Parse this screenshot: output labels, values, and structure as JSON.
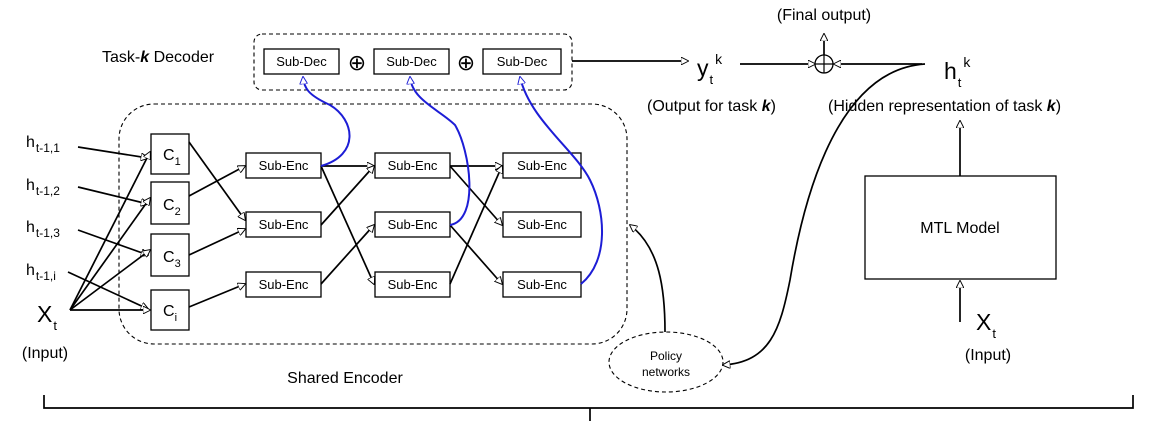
{
  "decoder": {
    "title_prefix": "Task-",
    "title_k": "k",
    "title_suffix": " Decoder",
    "blocks": [
      "Sub-Dec",
      "Sub-Dec",
      "Sub-Dec"
    ],
    "combine_symbol": "⊕"
  },
  "encoder": {
    "label": "Shared Encoder",
    "clusters": [
      {
        "base": "C",
        "sub": "1"
      },
      {
        "base": "C",
        "sub": "2"
      },
      {
        "base": "C",
        "sub": "3"
      },
      {
        "base": "C",
        "sub": "i"
      }
    ],
    "sub_enc_label": "Sub-Enc"
  },
  "inputs": {
    "hidden": [
      {
        "base": "h",
        "sub": "t-1,1"
      },
      {
        "base": "h",
        "sub": "t-1,2"
      },
      {
        "base": "h",
        "sub": "t-1,3"
      },
      {
        "base": "h",
        "sub": "t-1,i"
      }
    ],
    "x_base": "X",
    "x_sub": "t",
    "x_caption": "(Input)"
  },
  "output": {
    "y_base": "y",
    "y_sub": "t",
    "y_sup": "k",
    "y_caption_prefix": "(Output for task ",
    "y_caption_k": "k",
    "y_caption_suffix": ")",
    "final_caption": "(Final output)",
    "h_base": "h",
    "h_sub": "t",
    "h_sup": "k",
    "h_caption_prefix": "(Hidden representation of task ",
    "h_caption_k": "k",
    "h_caption_suffix": ")"
  },
  "policy": {
    "line1": "Policy",
    "line2": "networks"
  },
  "mtl": {
    "label": "MTL Model",
    "x_base": "X",
    "x_sub": "t",
    "x_caption": "(Input)"
  }
}
